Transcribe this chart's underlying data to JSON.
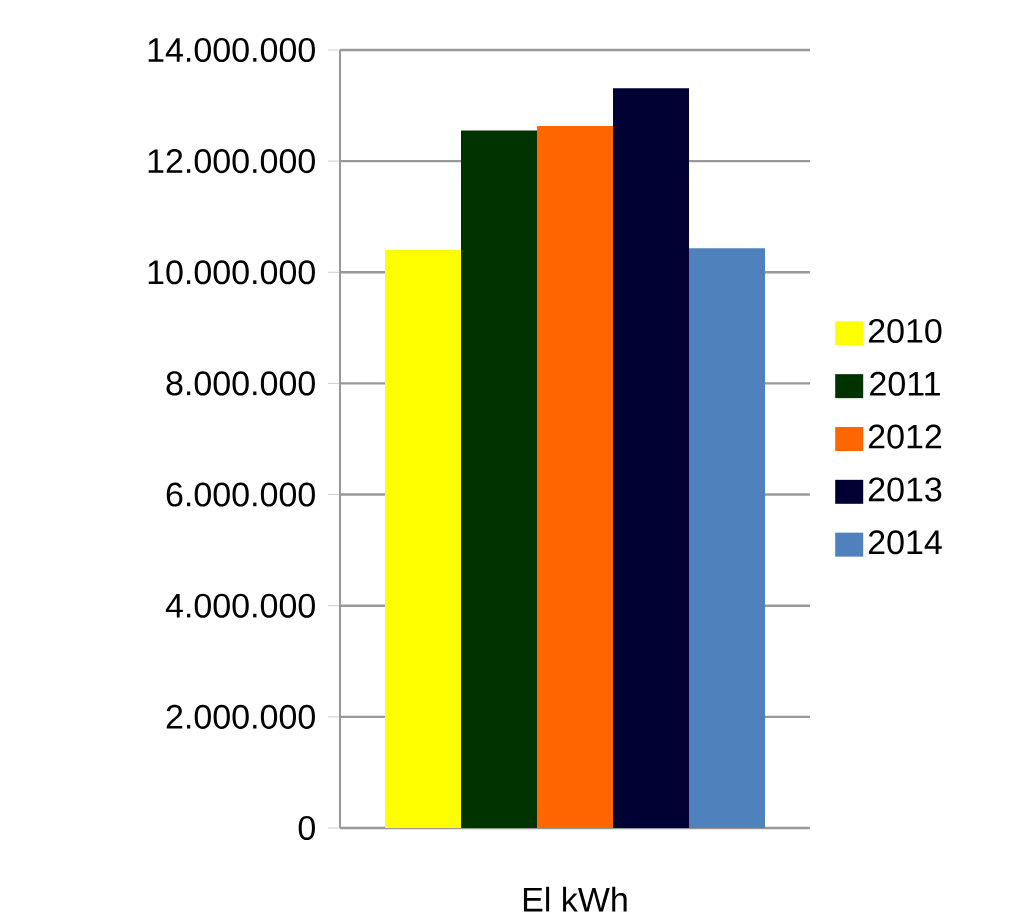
{
  "chart_data": {
    "type": "bar",
    "xlabel": "El kWh",
    "categories": [
      null
    ],
    "series": [
      {
        "name": "2010",
        "color": "#ffff00",
        "values": [
          10400000
        ]
      },
      {
        "name": "2011",
        "color": "#003300",
        "values": [
          12550000
        ]
      },
      {
        "name": "2012",
        "color": "#ff6600",
        "values": [
          12630000
        ]
      },
      {
        "name": "2013",
        "color": "#000033",
        "values": [
          13310000
        ]
      },
      {
        "name": "2014",
        "color": "#4f81bd",
        "values": [
          10430000
        ]
      }
    ],
    "ylim": [
      0,
      14000000
    ],
    "yticks": [
      0,
      {
        "value": 2000000,
        "label": "2.000.000"
      },
      {
        "value": 4000000,
        "label": "4.000.000"
      },
      {
        "value": 6000000,
        "label": "6.000.000"
      },
      {
        "value": 8000000,
        "label": "8.000.000"
      },
      {
        "value": 10000000,
        "label": "10.000.000"
      },
      {
        "value": 12000000,
        "label": "12.000.000"
      },
      {
        "value": 14000000,
        "label": "14.000.000"
      }
    ],
    "grid": "y",
    "legend": "right"
  }
}
